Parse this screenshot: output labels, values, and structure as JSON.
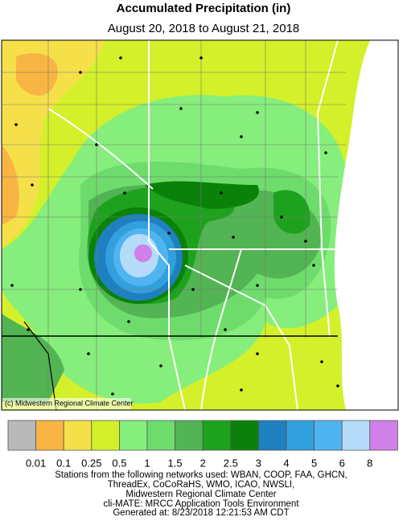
{
  "header": {
    "title": "Accumulated Precipitation (in)",
    "subtitle": "August 20, 2018 to August 21, 2018"
  },
  "map": {
    "credit": "(c) Midwestern Regional Climate Center"
  },
  "legend": {
    "colors": [
      "#b9b9b9",
      "#f9b543",
      "#f5e04a",
      "#d4f02a",
      "#86ee7c",
      "#6edc6c",
      "#52b452",
      "#1ea21e",
      "#0a820a",
      "#1e80c0",
      "#32a0dc",
      "#50b4f0",
      "#b4dcf8",
      "#d080e8"
    ],
    "labels": [
      "0.01",
      "0.1",
      "0.25",
      "0.5",
      "1",
      "1.5",
      "2",
      "2.5",
      "3",
      "4",
      "5",
      "6",
      "8"
    ]
  },
  "footer": {
    "lines": [
      "Stations from the following networks used: WBAN, COOP, FAA, GHCN,",
      "ThreadEx, CoCoRaHS, WMO, ICAO, NWSLI,",
      "Midwestern Regional Climate Center",
      "cli-MATE: MRCC Application Tools Environment",
      "Generated at: 8/23/2018 12:21:53 AM CDT"
    ]
  }
}
